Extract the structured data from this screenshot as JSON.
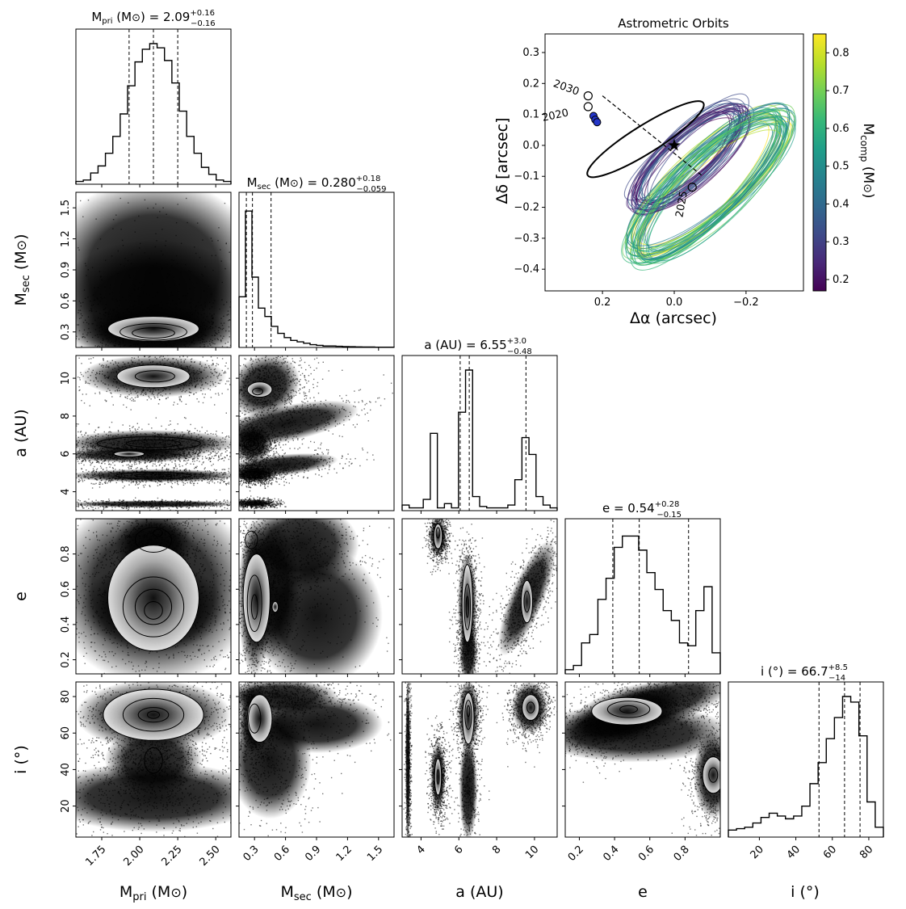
{
  "figure": {
    "titles": {
      "mpri": "M",
      "mpri_sub": "pri",
      "mpri_rest": " (M",
      "mpri_close": ") = 2.09",
      "mpri_sup": "+0.16",
      "mpri_low": "−0.16",
      "msec": "M",
      "msec_sub": "sec",
      "msec_rest": " (M",
      "msec_close": ") = 0.280",
      "msec_sup": "+0.18",
      "msec_low": "−0.059",
      "a": "a (AU) = 6.55",
      "a_sup": "+3.0",
      "a_low": "−0.48",
      "e": "e = 0.54",
      "e_sup": "+0.28",
      "e_low": "−0.15",
      "i": "i (°) = 66.7",
      "i_sup": "+8.5",
      "i_low": "−14"
    },
    "axis_labels": {
      "mpri_main": "M",
      "mpri_sub": "pri",
      "mpri_end": " (M",
      "mpri_close": ")",
      "msec_main": "M",
      "msec_sub": "sec",
      "msec_end": " (M",
      "msec_close": ")",
      "a": "a (AU)",
      "e": "e",
      "i": "i (°)",
      "sun": "⊙"
    }
  },
  "chart_data": [
    {
      "type": "corner",
      "parameters": [
        "M_pri (M⊙)",
        "M_sec (M⊙)",
        "a (AU)",
        "e",
        "i (°)"
      ],
      "quantiles": {
        "mpri": {
          "median": 2.09,
          "plus": 0.16,
          "minus": 0.16,
          "lines": [
            1.93,
            2.09,
            2.25
          ]
        },
        "msec": {
          "median": 0.28,
          "plus": 0.18,
          "minus": 0.059,
          "lines": [
            0.221,
            0.28,
            0.46
          ]
        },
        "a": {
          "median": 6.55,
          "plus": 3.0,
          "minus": 0.48,
          "lines": [
            6.07,
            6.55,
            9.55
          ]
        },
        "e": {
          "median": 0.54,
          "plus": 0.28,
          "minus": 0.15,
          "lines": [
            0.39,
            0.54,
            0.82
          ]
        },
        "i": {
          "median": 66.7,
          "plus": 8.5,
          "minus": 14,
          "lines": [
            52.7,
            66.7,
            75.2
          ]
        }
      },
      "ranges": {
        "mpri": [
          1.58,
          2.6
        ],
        "msec": [
          0.15,
          1.65
        ],
        "a": [
          3.0,
          11.2
        ],
        "e": [
          0.12,
          1.0
        ],
        "i": [
          3,
          88
        ]
      },
      "ticks": {
        "mpri": [
          "1.75",
          "2.00",
          "2.25",
          "2.50"
        ],
        "mpri_vals": [
          1.75,
          2.0,
          2.25,
          2.5
        ],
        "msec": [
          "0.3",
          "0.6",
          "0.9",
          "1.2",
          "1.5"
        ],
        "msec_vals": [
          0.3,
          0.6,
          0.9,
          1.2,
          1.5
        ],
        "a": [
          "4",
          "6",
          "8",
          "10"
        ],
        "a_vals": [
          4,
          6,
          8,
          10
        ],
        "e": [
          "0.2",
          "0.4",
          "0.6",
          "0.8"
        ],
        "e_vals": [
          0.2,
          0.4,
          0.6,
          0.8
        ],
        "i": [
          "20",
          "40",
          "60",
          "80"
        ],
        "i_vals": [
          20,
          40,
          60,
          80
        ]
      },
      "histograms": {
        "mpri": [
          0.02,
          0.03,
          0.08,
          0.13,
          0.22,
          0.34,
          0.5,
          0.7,
          0.87,
          0.96,
          1.0,
          0.97,
          0.88,
          0.72,
          0.52,
          0.34,
          0.22,
          0.12,
          0.07,
          0.03,
          0.02
        ],
        "msec": [
          0.36,
          0.97,
          0.5,
          0.28,
          0.22,
          0.15,
          0.1,
          0.07,
          0.05,
          0.04,
          0.03,
          0.02,
          0.015,
          0.01,
          0.01,
          0.008,
          0.006,
          0.005,
          0.004,
          0.003,
          0.003,
          0.002,
          0.002,
          0.002
        ],
        "a": [
          0.04,
          0.02,
          0.02,
          0.08,
          0.55,
          0.02,
          0.05,
          0.02,
          0.7,
          1.0,
          0.1,
          0.03,
          0.02,
          0.02,
          0.02,
          0.04,
          0.22,
          0.52,
          0.4,
          0.1,
          0.04,
          0.02
        ],
        "e": [
          0.03,
          0.06,
          0.22,
          0.28,
          0.53,
          0.68,
          0.9,
          0.98,
          0.98,
          0.88,
          0.72,
          0.6,
          0.45,
          0.38,
          0.22,
          0.2,
          0.45,
          0.62,
          0.15
        ],
        "i": [
          0.05,
          0.06,
          0.07,
          0.1,
          0.14,
          0.17,
          0.15,
          0.13,
          0.15,
          0.22,
          0.38,
          0.53,
          0.7,
          0.85,
          1.0,
          0.96,
          0.72,
          0.25,
          0.07
        ]
      }
    },
    {
      "type": "line",
      "title": "Astrometric Orbits",
      "xlabel": "Δα (arcsec)",
      "ylabel": "Δδ [arcsec]",
      "xlim": [
        0.36,
        -0.36
      ],
      "ylim": [
        -0.47,
        0.36
      ],
      "xticks": [
        "0.2",
        "0.0",
        "−0.2"
      ],
      "xtick_vals": [
        0.2,
        0.0,
        -0.2
      ],
      "yticks": [
        "0.3",
        "0.2",
        "0.1",
        "0.0",
        "−0.1",
        "−0.2",
        "−0.3",
        "−0.4"
      ],
      "ytick_vals": [
        0.3,
        0.2,
        0.1,
        0.0,
        -0.1,
        -0.2,
        -0.3,
        -0.4
      ],
      "colorbar": {
        "label_main": "M",
        "label_sub": "comp",
        "label_end": " (M",
        "label_close": ")",
        "range": [
          0.17,
          0.85
        ],
        "ticks": [
          "0.8",
          "0.7",
          "0.6",
          "0.5",
          "0.4",
          "0.3",
          "0.2"
        ],
        "tick_vals": [
          0.8,
          0.7,
          0.6,
          0.5,
          0.4,
          0.3,
          0.2
        ]
      },
      "epoch_labels": [
        "2030",
        "2020",
        "2025"
      ],
      "epoch_points": [
        {
          "label": "2030",
          "x": 0.24,
          "y": 0.16
        },
        {
          "label": "2020",
          "x": 0.24,
          "y": 0.125
        },
        {
          "label": "2025",
          "x": -0.05,
          "y": -0.135
        }
      ],
      "data_points": [
        {
          "x": 0.225,
          "y": 0.095
        },
        {
          "x": 0.22,
          "y": 0.083
        },
        {
          "x": 0.215,
          "y": 0.075
        }
      ],
      "star": {
        "x": 0.0,
        "y": 0.0
      }
    }
  ],
  "colors": {
    "viridis": [
      "#440154",
      "#482878",
      "#3e4a89",
      "#31688e",
      "#26828e",
      "#1f9e89",
      "#35b779",
      "#6ece58",
      "#b5de2b",
      "#fde725"
    ],
    "point_fill": "#2436c8"
  }
}
